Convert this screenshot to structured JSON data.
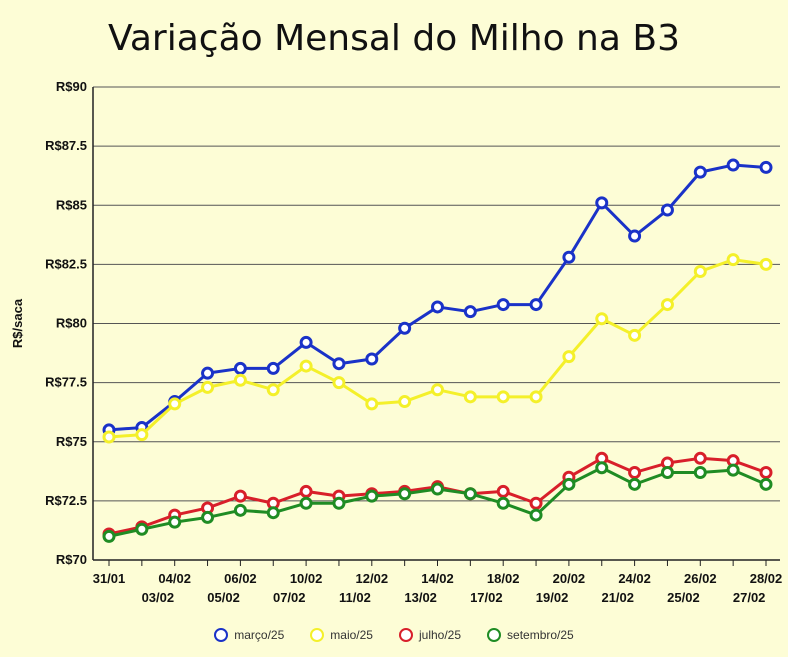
{
  "chart_data": {
    "type": "line",
    "title": "Variação Mensal do Milho na B3",
    "ylabel": "R$/saca",
    "xlabel": "",
    "ylim": [
      70,
      90
    ],
    "yticks": [
      70,
      72.5,
      75,
      77.5,
      80,
      82.5,
      85,
      87.5,
      90
    ],
    "ytick_labels": [
      "R$70",
      "R$72.5",
      "R$75",
      "R$77.5",
      "R$80",
      "R$82.5",
      "R$85",
      "R$87.5",
      "R$90"
    ],
    "categories": [
      "31/01",
      "03/02",
      "04/02",
      "05/02",
      "06/02",
      "07/02",
      "10/02",
      "11/02",
      "12/02",
      "13/02",
      "14/02",
      "17/02",
      "18/02",
      "19/02",
      "20/02",
      "21/02",
      "24/02",
      "25/02",
      "26/02",
      "27/02",
      "28/02"
    ],
    "grid": "horizontal",
    "legend_position": "bottom",
    "series": [
      {
        "name": "março/25",
        "color": "#1a32c8",
        "values": [
          75.5,
          75.6,
          76.7,
          77.9,
          78.1,
          78.1,
          79.2,
          78.3,
          78.5,
          79.8,
          80.7,
          80.5,
          80.8,
          80.8,
          82.8,
          85.1,
          83.7,
          84.8,
          86.4,
          86.7,
          86.6
        ]
      },
      {
        "name": "maio/25",
        "color": "#f4f02a",
        "values": [
          75.2,
          75.3,
          76.6,
          77.3,
          77.6,
          77.2,
          78.2,
          77.5,
          76.6,
          76.7,
          77.2,
          76.9,
          76.9,
          76.9,
          78.6,
          80.2,
          79.5,
          80.8,
          82.2,
          82.7,
          82.5
        ]
      },
      {
        "name": "julho/25",
        "color": "#d81f2a",
        "values": [
          71.1,
          71.4,
          71.9,
          72.2,
          72.7,
          72.4,
          72.9,
          72.7,
          72.8,
          72.9,
          73.1,
          72.8,
          72.9,
          72.4,
          73.5,
          74.3,
          73.7,
          74.1,
          74.3,
          74.2,
          73.7
        ]
      },
      {
        "name": "setembro/25",
        "color": "#1f8c24",
        "values": [
          71.0,
          71.3,
          71.6,
          71.8,
          72.1,
          72.0,
          72.4,
          72.4,
          72.7,
          72.8,
          73.0,
          72.8,
          72.4,
          71.9,
          73.2,
          73.9,
          73.2,
          73.7,
          73.7,
          73.8,
          73.2
        ]
      }
    ]
  }
}
